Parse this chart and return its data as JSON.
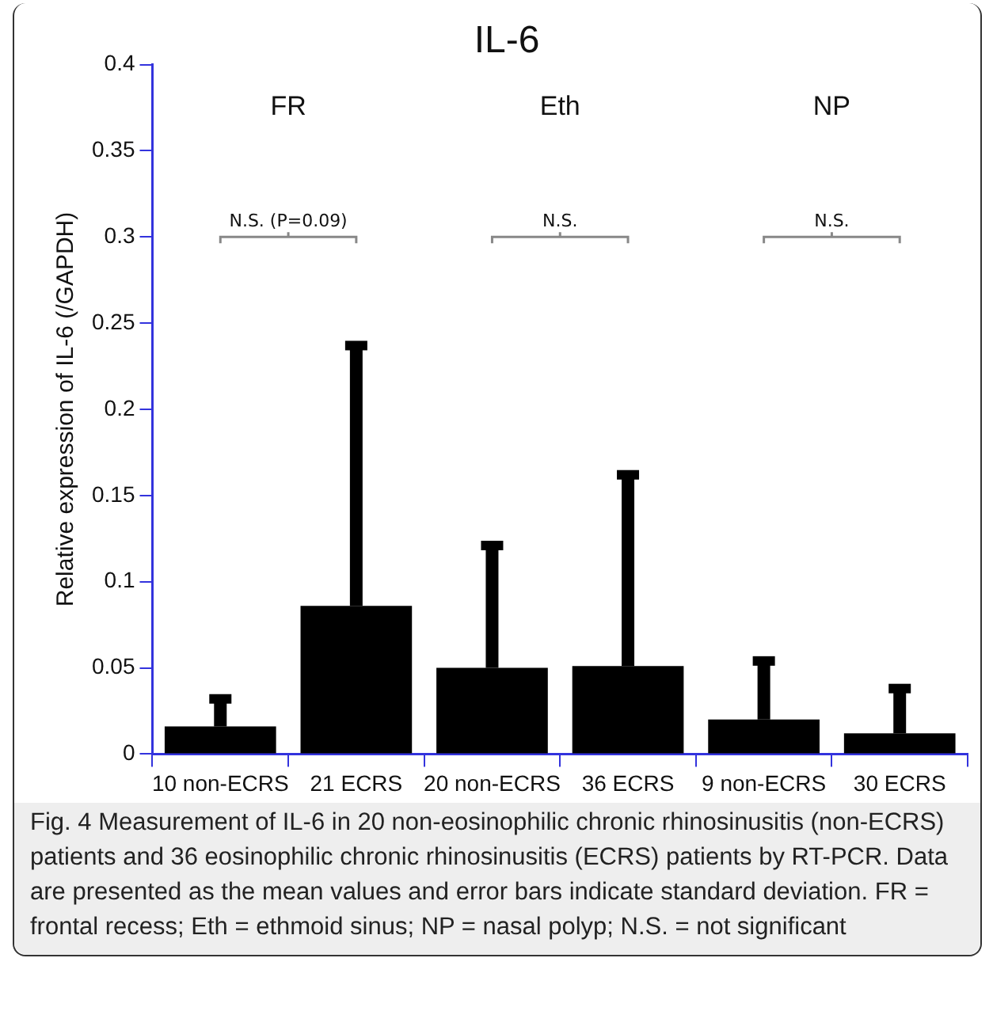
{
  "chart_data": {
    "type": "bar",
    "title": "IL-6",
    "ylabel": "Relative expression of IL-6 (/GAPDH)",
    "categories": [
      "10 non-ECRS",
      "21 ECRS",
      "20 non-ECRS",
      "36 ECRS",
      "9 non-ECRS",
      "30 ECRS"
    ],
    "values": [
      0.016,
      0.086,
      0.05,
      0.051,
      0.02,
      0.012
    ],
    "errors": [
      [
        0.016,
        0.032
      ],
      [
        0.086,
        0.237
      ],
      [
        0.05,
        0.121
      ],
      [
        0.051,
        0.162
      ],
      [
        0.02,
        0.054
      ],
      [
        0.012,
        0.038
      ]
    ],
    "color": "#000000",
    "ylim": [
      0,
      0.4
    ],
    "yticks": [
      0,
      0.05,
      0.1,
      0.15,
      0.2,
      0.25,
      0.3,
      0.35,
      0.4
    ],
    "grid": false,
    "legend": false,
    "annotations": [
      "FR",
      "Eth",
      "NP",
      "N.S. (P=0.09)",
      "N.S.",
      "N.S.",
      "Fig. 4 Measurement of IL-6 in 20 non-eosinophilic chronic rhinosinusitis (non-ECRS) patients and 36 eosinophilic chronic rhinosinusitis (ECRS) patients by RT-PCR. Data are presented as the mean values and error bars indicate standard deviation. FR = frontal recess; Eth = ethmoid sinus; NP = nasal polyp; N.S. = not significant"
    ]
  }
}
